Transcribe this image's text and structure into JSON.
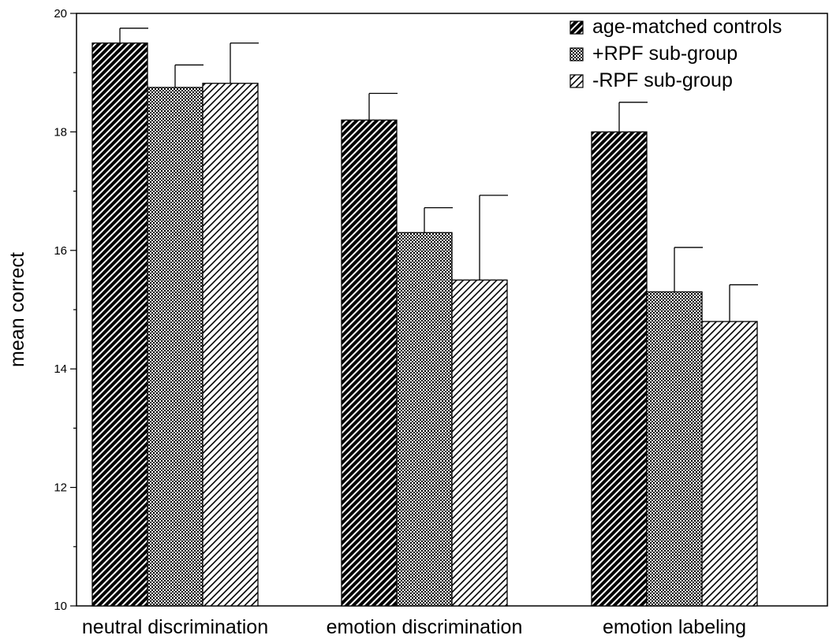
{
  "chart_data": {
    "type": "bar",
    "title": "",
    "xlabel": "",
    "ylabel": "mean correct",
    "ylim": [
      10,
      20
    ],
    "yticks": [
      10,
      12,
      14,
      16,
      18,
      20
    ],
    "minor_tick_step": 1,
    "grid": false,
    "legend_position": "top-right",
    "categories": [
      "neutral discrimination",
      "emotion discrimination",
      "emotion labeling"
    ],
    "series": [
      {
        "name": "age-matched controls",
        "pattern": "dense-diagonal-hatch",
        "color": "#000000",
        "values": [
          19.5,
          18.2,
          18.0
        ],
        "error": [
          0.25,
          0.45,
          0.5
        ]
      },
      {
        "name": "+RPF sub-group",
        "pattern": "checker",
        "color": "#555555",
        "values": [
          18.75,
          16.3,
          15.3
        ],
        "error": [
          0.38,
          0.42,
          0.75
        ]
      },
      {
        "name": "-RPF sub-group",
        "pattern": "light-diagonal-hatch",
        "color": "#999999",
        "values": [
          18.82,
          15.5,
          14.8
        ],
        "error": [
          0.68,
          1.43,
          0.62
        ]
      }
    ]
  }
}
